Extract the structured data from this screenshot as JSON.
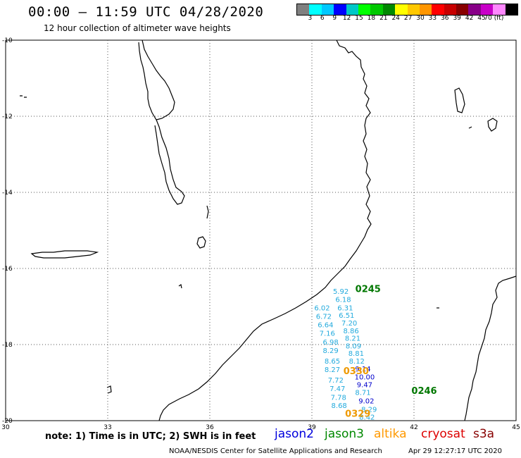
{
  "header": {
    "title": "00:00 – 11:59 UTC 04/28/2020",
    "subtitle": "12 hour collection of altimeter wave heights"
  },
  "legend": {
    "colors": [
      "#808080",
      "#00ffff",
      "#00c8ff",
      "#0000ff",
      "#00c8c8",
      "#00ff00",
      "#00c800",
      "#008800",
      "#ffff00",
      "#ffc800",
      "#ff9600",
      "#ff0000",
      "#c80000",
      "#880000",
      "#880088",
      "#c800c8",
      "#ff88ff",
      "#000000"
    ],
    "labels": [
      "3",
      "6",
      "9",
      "12",
      "15",
      "18",
      "21",
      "24",
      "27",
      "30",
      "33",
      "36",
      "39",
      "42",
      "45",
      "70 (ft)"
    ]
  },
  "axes": {
    "lat_labels": [
      "-10",
      "-12",
      "-14",
      "-16",
      "-18",
      "-20"
    ],
    "lon_labels": [
      "30",
      "33",
      "36",
      "39",
      "42",
      "45"
    ]
  },
  "map_data": {
    "type": "map",
    "lon_range": [
      30,
      45
    ],
    "lat_range": [
      -20,
      -10
    ],
    "swh_points": [
      {
        "lon": 39.85,
        "lat": -16.67,
        "label": "5.92",
        "color": "#22aadd"
      },
      {
        "lon": 39.92,
        "lat": -16.88,
        "label": "6.18",
        "color": "#22aadd"
      },
      {
        "lon": 39.98,
        "lat": -17.1,
        "label": "6.31",
        "color": "#22aadd"
      },
      {
        "lon": 40.02,
        "lat": -17.3,
        "label": "6.51",
        "color": "#22aadd"
      },
      {
        "lon": 40.1,
        "lat": -17.5,
        "label": "7.20",
        "color": "#22aadd"
      },
      {
        "lon": 40.15,
        "lat": -17.7,
        "label": "8.86",
        "color": "#22aadd"
      },
      {
        "lon": 40.2,
        "lat": -17.9,
        "label": "8.21",
        "color": "#22aadd"
      },
      {
        "lon": 40.22,
        "lat": -18.1,
        "label": "8.09",
        "color": "#22aadd"
      },
      {
        "lon": 40.3,
        "lat": -18.3,
        "label": "8.81",
        "color": "#22aadd"
      },
      {
        "lon": 40.32,
        "lat": -18.5,
        "label": "8.12",
        "color": "#22aadd"
      },
      {
        "lon": 40.5,
        "lat": -18.7,
        "label": "9.14",
        "color": "#0000cc"
      },
      {
        "lon": 40.55,
        "lat": -18.92,
        "label": "10.00",
        "color": "#0000cc"
      },
      {
        "lon": 40.55,
        "lat": -19.12,
        "label": "9.47",
        "color": "#0000cc"
      },
      {
        "lon": 40.5,
        "lat": -19.32,
        "label": "8.71",
        "color": "#22aadd"
      },
      {
        "lon": 40.6,
        "lat": -19.55,
        "label": "9.02",
        "color": "#0000cc"
      },
      {
        "lon": 40.68,
        "lat": -19.77,
        "label": "8.29",
        "color": "#22aadd"
      },
      {
        "lon": 40.62,
        "lat": -19.97,
        "label": "8.42",
        "color": "#22aadd"
      },
      {
        "lon": 39.3,
        "lat": -17.1,
        "label": "6.02",
        "color": "#22aadd"
      },
      {
        "lon": 39.35,
        "lat": -17.32,
        "label": "6.72",
        "color": "#22aadd"
      },
      {
        "lon": 39.4,
        "lat": -17.55,
        "label": "6.64",
        "color": "#22aadd"
      },
      {
        "lon": 39.45,
        "lat": -17.77,
        "label": "7.16",
        "color": "#22aadd"
      },
      {
        "lon": 39.55,
        "lat": -18.0,
        "label": "6.98",
        "color": "#22aadd"
      },
      {
        "lon": 39.55,
        "lat": -18.22,
        "label": "8.29",
        "color": "#22aadd"
      },
      {
        "lon": 39.6,
        "lat": -18.5,
        "label": "8.65",
        "color": "#22aadd"
      },
      {
        "lon": 39.6,
        "lat": -18.72,
        "label": "8.27",
        "color": "#22aadd"
      },
      {
        "lon": 39.7,
        "lat": -19.0,
        "label": "7.72",
        "color": "#22aadd"
      },
      {
        "lon": 39.75,
        "lat": -19.22,
        "label": "7.47",
        "color": "#22aadd"
      },
      {
        "lon": 39.78,
        "lat": -19.45,
        "label": "7.78",
        "color": "#22aadd"
      },
      {
        "lon": 39.8,
        "lat": -19.67,
        "label": "8.68",
        "color": "#22aadd"
      }
    ],
    "pass_labels": [
      {
        "lon": 40.65,
        "lat": -16.62,
        "label": "0245",
        "color": "#007700"
      },
      {
        "lon": 42.3,
        "lat": -19.3,
        "label": "0246",
        "color": "#007700"
      },
      {
        "lon": 40.3,
        "lat": -18.78,
        "label": "0330",
        "color": "#ee9900"
      },
      {
        "lon": 40.35,
        "lat": -19.9,
        "label": "0329",
        "color": "#ee9900"
      }
    ]
  },
  "footer": {
    "note": "note:  1) Time is in UTC;  2) SWH is in feet",
    "satellites": [
      {
        "name": "jason2",
        "color": "#0000dd"
      },
      {
        "name": "jason3",
        "color": "#008800"
      },
      {
        "name": "altika",
        "color": "#ff9900"
      },
      {
        "name": "cryosat",
        "color": "#dd0000"
      },
      {
        "name": "s3a",
        "color": "#880000"
      }
    ],
    "credit": "NOAA/NESDIS Center for Satellite Applications and Research",
    "timestamp": "Apr 29 12:27:17 UTC 2020"
  }
}
